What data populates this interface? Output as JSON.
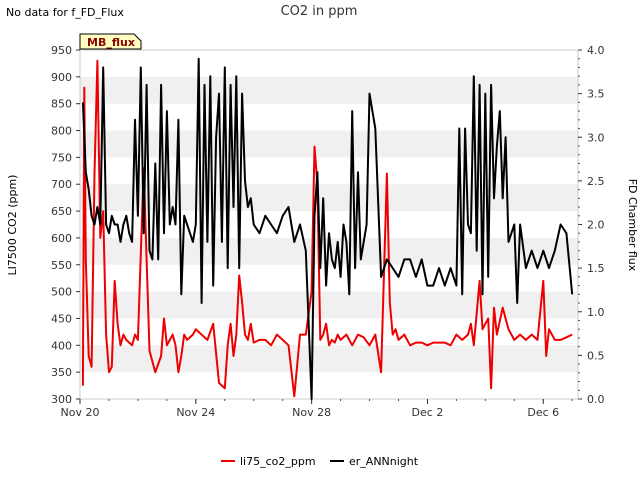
{
  "header": {
    "no_data_text": "No data for f_FD_Flux"
  },
  "badge": {
    "label": "MB_flux"
  },
  "colors": {
    "co2": "#ee0000",
    "ann": "#000000",
    "band": "#f0f0f0",
    "badge_bg": "#ffffc0"
  },
  "chart_data": {
    "type": "line",
    "title": "CO2 in ppm",
    "xlabel": "",
    "ylabel": "LI7500 CO2 (ppm)",
    "y2label": "FD Chamber flux",
    "xlim": [
      0,
      17.2
    ],
    "ylim": [
      300,
      950
    ],
    "y2lim": [
      0.0,
      4.0
    ],
    "x_ticks": [
      {
        "value": 0,
        "label": "Nov 20"
      },
      {
        "value": 4,
        "label": "Nov 24"
      },
      {
        "value": 8,
        "label": "Nov 28"
      },
      {
        "value": 12,
        "label": "Dec 2"
      },
      {
        "value": 16,
        "label": "Dec 6"
      }
    ],
    "y_ticks": [
      300,
      350,
      400,
      450,
      500,
      550,
      600,
      650,
      700,
      750,
      800,
      850,
      900,
      950
    ],
    "y2_ticks": [
      "0.0",
      "0.5",
      "1.0",
      "1.5",
      "2.0",
      "2.5",
      "3.0",
      "3.5",
      "4.0"
    ],
    "legend": [
      {
        "name": "li75_co2_ppm",
        "color": "#ee0000"
      },
      {
        "name": "er_ANNnight",
        "color": "#000000"
      }
    ],
    "series": [
      {
        "name": "li75_co2_ppm",
        "axis": "left",
        "color": "#ee0000",
        "x": [
          0.1,
          0.15,
          0.2,
          0.3,
          0.4,
          0.5,
          0.6,
          0.7,
          0.8,
          0.9,
          1.0,
          1.1,
          1.2,
          1.3,
          1.4,
          1.5,
          1.6,
          1.7,
          1.8,
          1.9,
          2.0,
          2.2,
          2.4,
          2.6,
          2.8,
          2.9,
          3.0,
          3.1,
          3.2,
          3.3,
          3.4,
          3.5,
          3.6,
          3.7,
          3.8,
          3.9,
          4.0,
          4.2,
          4.4,
          4.6,
          4.8,
          5.0,
          5.1,
          5.2,
          5.3,
          5.4,
          5.5,
          5.6,
          5.7,
          5.8,
          5.9,
          6.0,
          6.2,
          6.4,
          6.6,
          6.8,
          7.0,
          7.2,
          7.4,
          7.6,
          7.8,
          8.0,
          8.1,
          8.2,
          8.3,
          8.4,
          8.5,
          8.6,
          8.7,
          8.8,
          8.9,
          9.0,
          9.2,
          9.4,
          9.6,
          9.8,
          10.0,
          10.2,
          10.4,
          10.6,
          10.7,
          10.8,
          10.9,
          11.0,
          11.2,
          11.4,
          11.6,
          11.8,
          12.0,
          12.2,
          12.4,
          12.6,
          12.8,
          13.0,
          13.2,
          13.4,
          13.5,
          13.6,
          13.7,
          13.8,
          13.9,
          14.0,
          14.1,
          14.2,
          14.3,
          14.4,
          14.6,
          14.8,
          15.0,
          15.2,
          15.4,
          15.6,
          15.8,
          16.0,
          16.1,
          16.2,
          16.4,
          16.6,
          16.8,
          17.0
        ],
        "values": [
          325,
          880,
          560,
          380,
          360,
          720,
          930,
          600,
          650,
          420,
          350,
          360,
          520,
          440,
          400,
          420,
          410,
          405,
          400,
          420,
          410,
          730,
          390,
          350,
          380,
          450,
          400,
          410,
          420,
          400,
          350,
          380,
          420,
          410,
          415,
          420,
          430,
          420,
          410,
          440,
          330,
          320,
          400,
          440,
          380,
          420,
          530,
          480,
          420,
          410,
          440,
          405,
          410,
          410,
          400,
          420,
          410,
          400,
          305,
          420,
          420,
          500,
          770,
          700,
          410,
          420,
          440,
          400,
          410,
          405,
          420,
          410,
          420,
          400,
          420,
          415,
          400,
          420,
          350,
          720,
          480,
          420,
          430,
          410,
          420,
          400,
          405,
          405,
          400,
          405,
          405,
          405,
          400,
          420,
          410,
          420,
          440,
          400,
          460,
          520,
          430,
          440,
          450,
          320,
          470,
          420,
          470,
          430,
          410,
          420,
          410,
          420,
          410,
          520,
          380,
          430,
          410,
          410,
          415,
          420
        ]
      },
      {
        "name": "er_ANNnight",
        "axis": "right",
        "color": "#000000",
        "x": [
          0.1,
          0.2,
          0.3,
          0.4,
          0.5,
          0.6,
          0.7,
          0.8,
          0.9,
          1.0,
          1.1,
          1.2,
          1.3,
          1.4,
          1.5,
          1.6,
          1.7,
          1.8,
          1.9,
          2.0,
          2.1,
          2.2,
          2.3,
          2.4,
          2.5,
          2.6,
          2.7,
          2.8,
          2.9,
          3.0,
          3.1,
          3.2,
          3.3,
          3.4,
          3.5,
          3.6,
          3.7,
          3.8,
          3.9,
          4.0,
          4.1,
          4.2,
          4.3,
          4.4,
          4.5,
          4.6,
          4.7,
          4.8,
          4.9,
          5.0,
          5.1,
          5.2,
          5.3,
          5.4,
          5.5,
          5.6,
          5.7,
          5.8,
          5.9,
          6.0,
          6.2,
          6.4,
          6.6,
          6.8,
          7.0,
          7.2,
          7.4,
          7.6,
          7.8,
          8.0,
          8.1,
          8.2,
          8.3,
          8.4,
          8.5,
          8.6,
          8.7,
          8.8,
          8.9,
          9.0,
          9.1,
          9.2,
          9.3,
          9.4,
          9.5,
          9.6,
          9.7,
          9.8,
          9.9,
          10.0,
          10.2,
          10.4,
          10.6,
          10.8,
          11.0,
          11.2,
          11.4,
          11.6,
          11.8,
          12.0,
          12.2,
          12.4,
          12.6,
          12.8,
          13.0,
          13.1,
          13.2,
          13.3,
          13.4,
          13.5,
          13.6,
          13.7,
          13.8,
          13.9,
          14.0,
          14.1,
          14.2,
          14.3,
          14.4,
          14.5,
          14.6,
          14.7,
          14.8,
          14.9,
          15.0,
          15.1,
          15.2,
          15.4,
          15.6,
          15.8,
          16.0,
          16.2,
          16.4,
          16.6,
          16.8,
          17.0
        ],
        "values": [
          3.4,
          2.6,
          2.4,
          2.1,
          2.0,
          2.2,
          2.0,
          3.8,
          2.0,
          1.9,
          2.1,
          2.0,
          2.0,
          1.8,
          2.0,
          2.1,
          1.9,
          1.8,
          3.2,
          2.1,
          3.8,
          1.9,
          3.6,
          1.7,
          1.6,
          2.7,
          1.6,
          3.6,
          1.9,
          3.3,
          2.0,
          2.2,
          2.0,
          3.2,
          1.2,
          2.1,
          2.0,
          1.9,
          1.8,
          2.0,
          3.9,
          1.1,
          3.6,
          1.8,
          3.7,
          1.3,
          3.0,
          3.5,
          1.8,
          3.8,
          1.5,
          3.6,
          2.2,
          3.7,
          1.5,
          3.5,
          2.5,
          2.2,
          2.3,
          2.0,
          1.9,
          2.1,
          2.0,
          1.9,
          2.1,
          2.2,
          1.8,
          2.0,
          1.7,
          0.0,
          2.1,
          2.6,
          1.5,
          2.3,
          1.3,
          1.9,
          1.6,
          1.5,
          1.8,
          1.4,
          2.0,
          1.8,
          1.2,
          3.3,
          1.5,
          2.6,
          1.6,
          1.8,
          2.0,
          3.5,
          3.1,
          1.4,
          1.6,
          1.5,
          1.4,
          1.6,
          1.6,
          1.4,
          1.6,
          1.3,
          1.3,
          1.5,
          1.3,
          1.5,
          1.3,
          3.1,
          1.2,
          3.1,
          2.0,
          1.9,
          3.7,
          1.7,
          3.6,
          1.2,
          3.5,
          1.4,
          3.6,
          2.3,
          2.9,
          3.3,
          2.3,
          3.0,
          1.8,
          1.9,
          2.0,
          1.1,
          2.0,
          1.5,
          1.7,
          1.5,
          1.7,
          1.5,
          1.7,
          2.0,
          1.9,
          1.2
        ]
      }
    ]
  }
}
